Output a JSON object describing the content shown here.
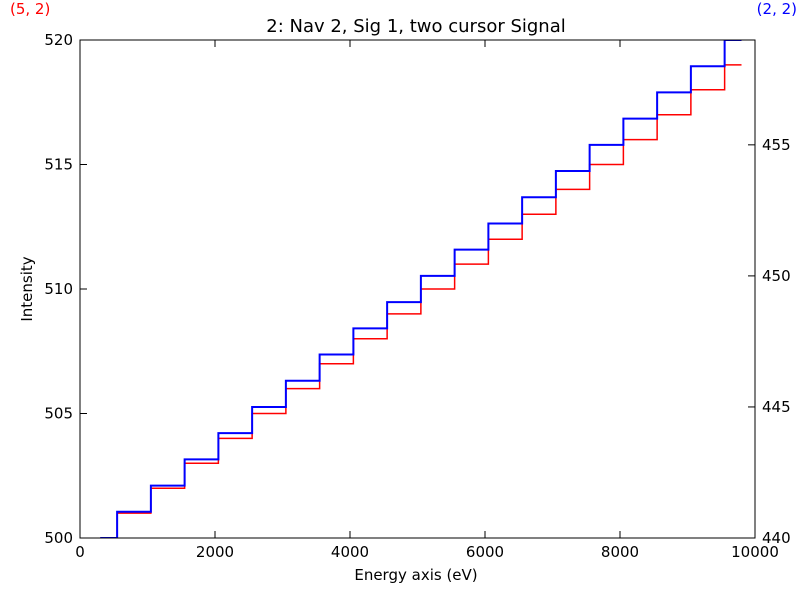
{
  "chart_data": {
    "type": "line",
    "title": "2: Nav 2, Sig 1, two cursor Signal",
    "xlabel": "Energy axis (eV)",
    "ylabel": "Intensity",
    "xlim": [
      0,
      10000
    ],
    "ylim_left": [
      500,
      520
    ],
    "ylim_right": [
      440,
      459
    ],
    "x_ticks": [
      "0",
      "2000",
      "4000",
      "6000",
      "8000",
      "10000"
    ],
    "y_ticks_left": [
      "500",
      "505",
      "510",
      "515",
      "520"
    ],
    "y_ticks_right": [
      "440",
      "445",
      "450",
      "455"
    ],
    "cursor_labels": [
      {
        "text": "(5, 2)",
        "color": "#ff0000"
      },
      {
        "text": "(2, 2)",
        "color": "#0000ff"
      }
    ],
    "series": [
      {
        "axis": "left",
        "color": "#ff0000",
        "step_x": [
          300,
          550,
          1050,
          1550,
          2050,
          2550,
          3050,
          3550,
          4050,
          4550,
          5050,
          5550,
          6050,
          6550,
          7050,
          7550,
          8050,
          8550,
          9050,
          9550,
          9800
        ],
        "step_y": [
          500,
          501,
          502,
          503,
          504,
          505,
          506,
          507,
          508,
          509,
          510,
          511,
          512,
          513,
          514,
          515,
          516,
          517,
          518,
          519
        ]
      },
      {
        "axis": "right",
        "color": "#0000ff",
        "step_x": [
          300,
          550,
          1050,
          1550,
          2050,
          2550,
          3050,
          3550,
          4050,
          4550,
          5050,
          5550,
          6050,
          6550,
          7050,
          7550,
          8050,
          8550,
          9050,
          9550,
          9800
        ],
        "step_y": [
          440,
          441,
          442,
          443,
          444,
          445,
          446,
          447,
          448,
          449,
          450,
          451,
          452,
          453,
          454,
          455,
          456,
          457,
          458,
          459
        ]
      }
    ]
  }
}
